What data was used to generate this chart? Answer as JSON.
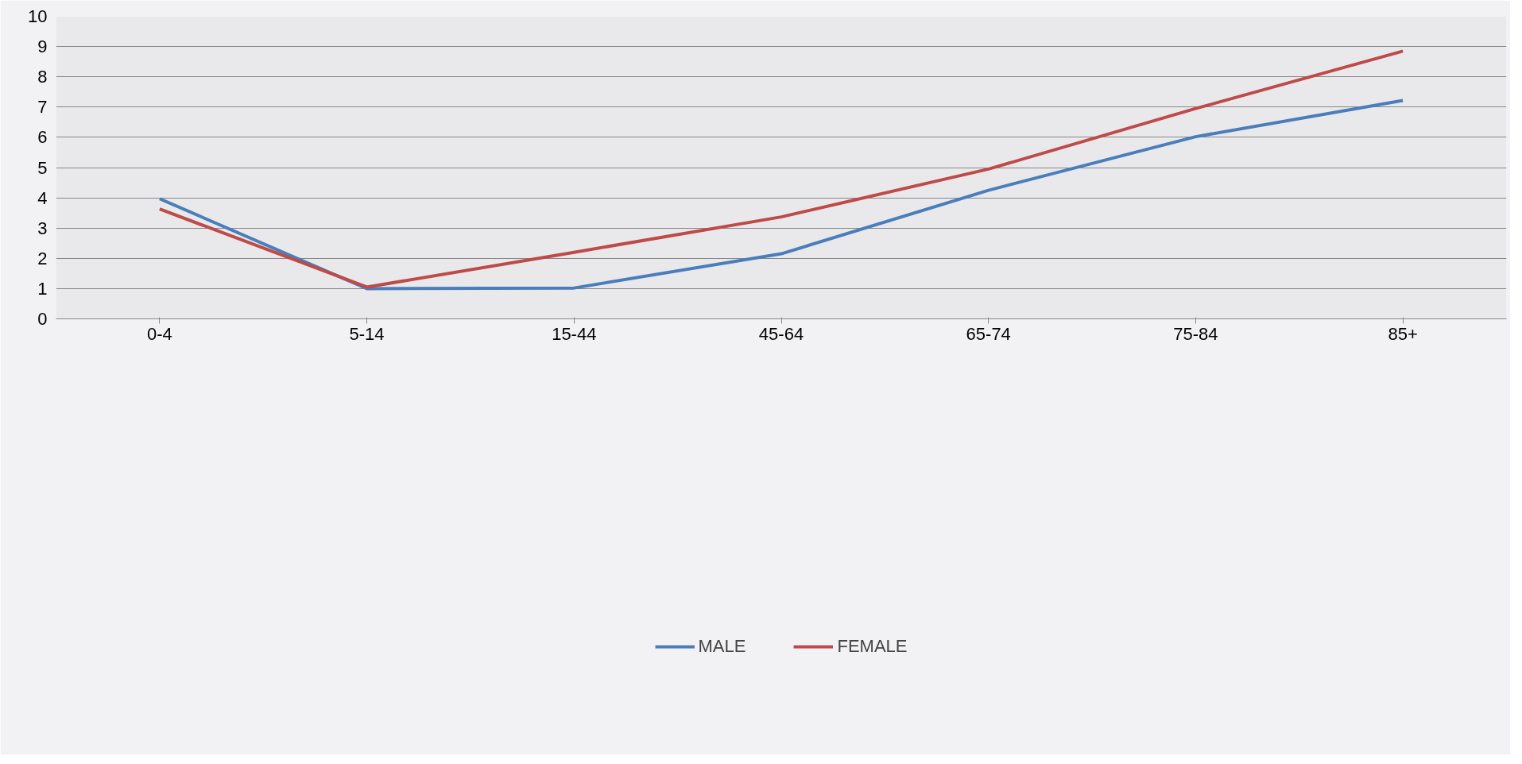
{
  "chart_data": {
    "type": "line",
    "categories": [
      "0-4",
      "5-14",
      "15-44",
      "45-64",
      "65-74",
      "75-84",
      "85+"
    ],
    "series": [
      {
        "name": "MALE",
        "color": "#4a7ebb",
        "values": [
          3.97,
          1.0,
          1.02,
          2.15,
          4.25,
          6.02,
          7.22
        ]
      },
      {
        "name": "FEMALE",
        "color": "#be4b48",
        "values": [
          3.63,
          1.05,
          2.2,
          3.37,
          4.95,
          6.95,
          8.85
        ]
      }
    ],
    "ylim": [
      0,
      10
    ],
    "yticks": [
      0,
      1,
      2,
      3,
      4,
      5,
      6,
      7,
      8,
      9,
      10
    ],
    "grid": "y",
    "legend": "bottom",
    "marker": "none",
    "line_style": "solid"
  }
}
